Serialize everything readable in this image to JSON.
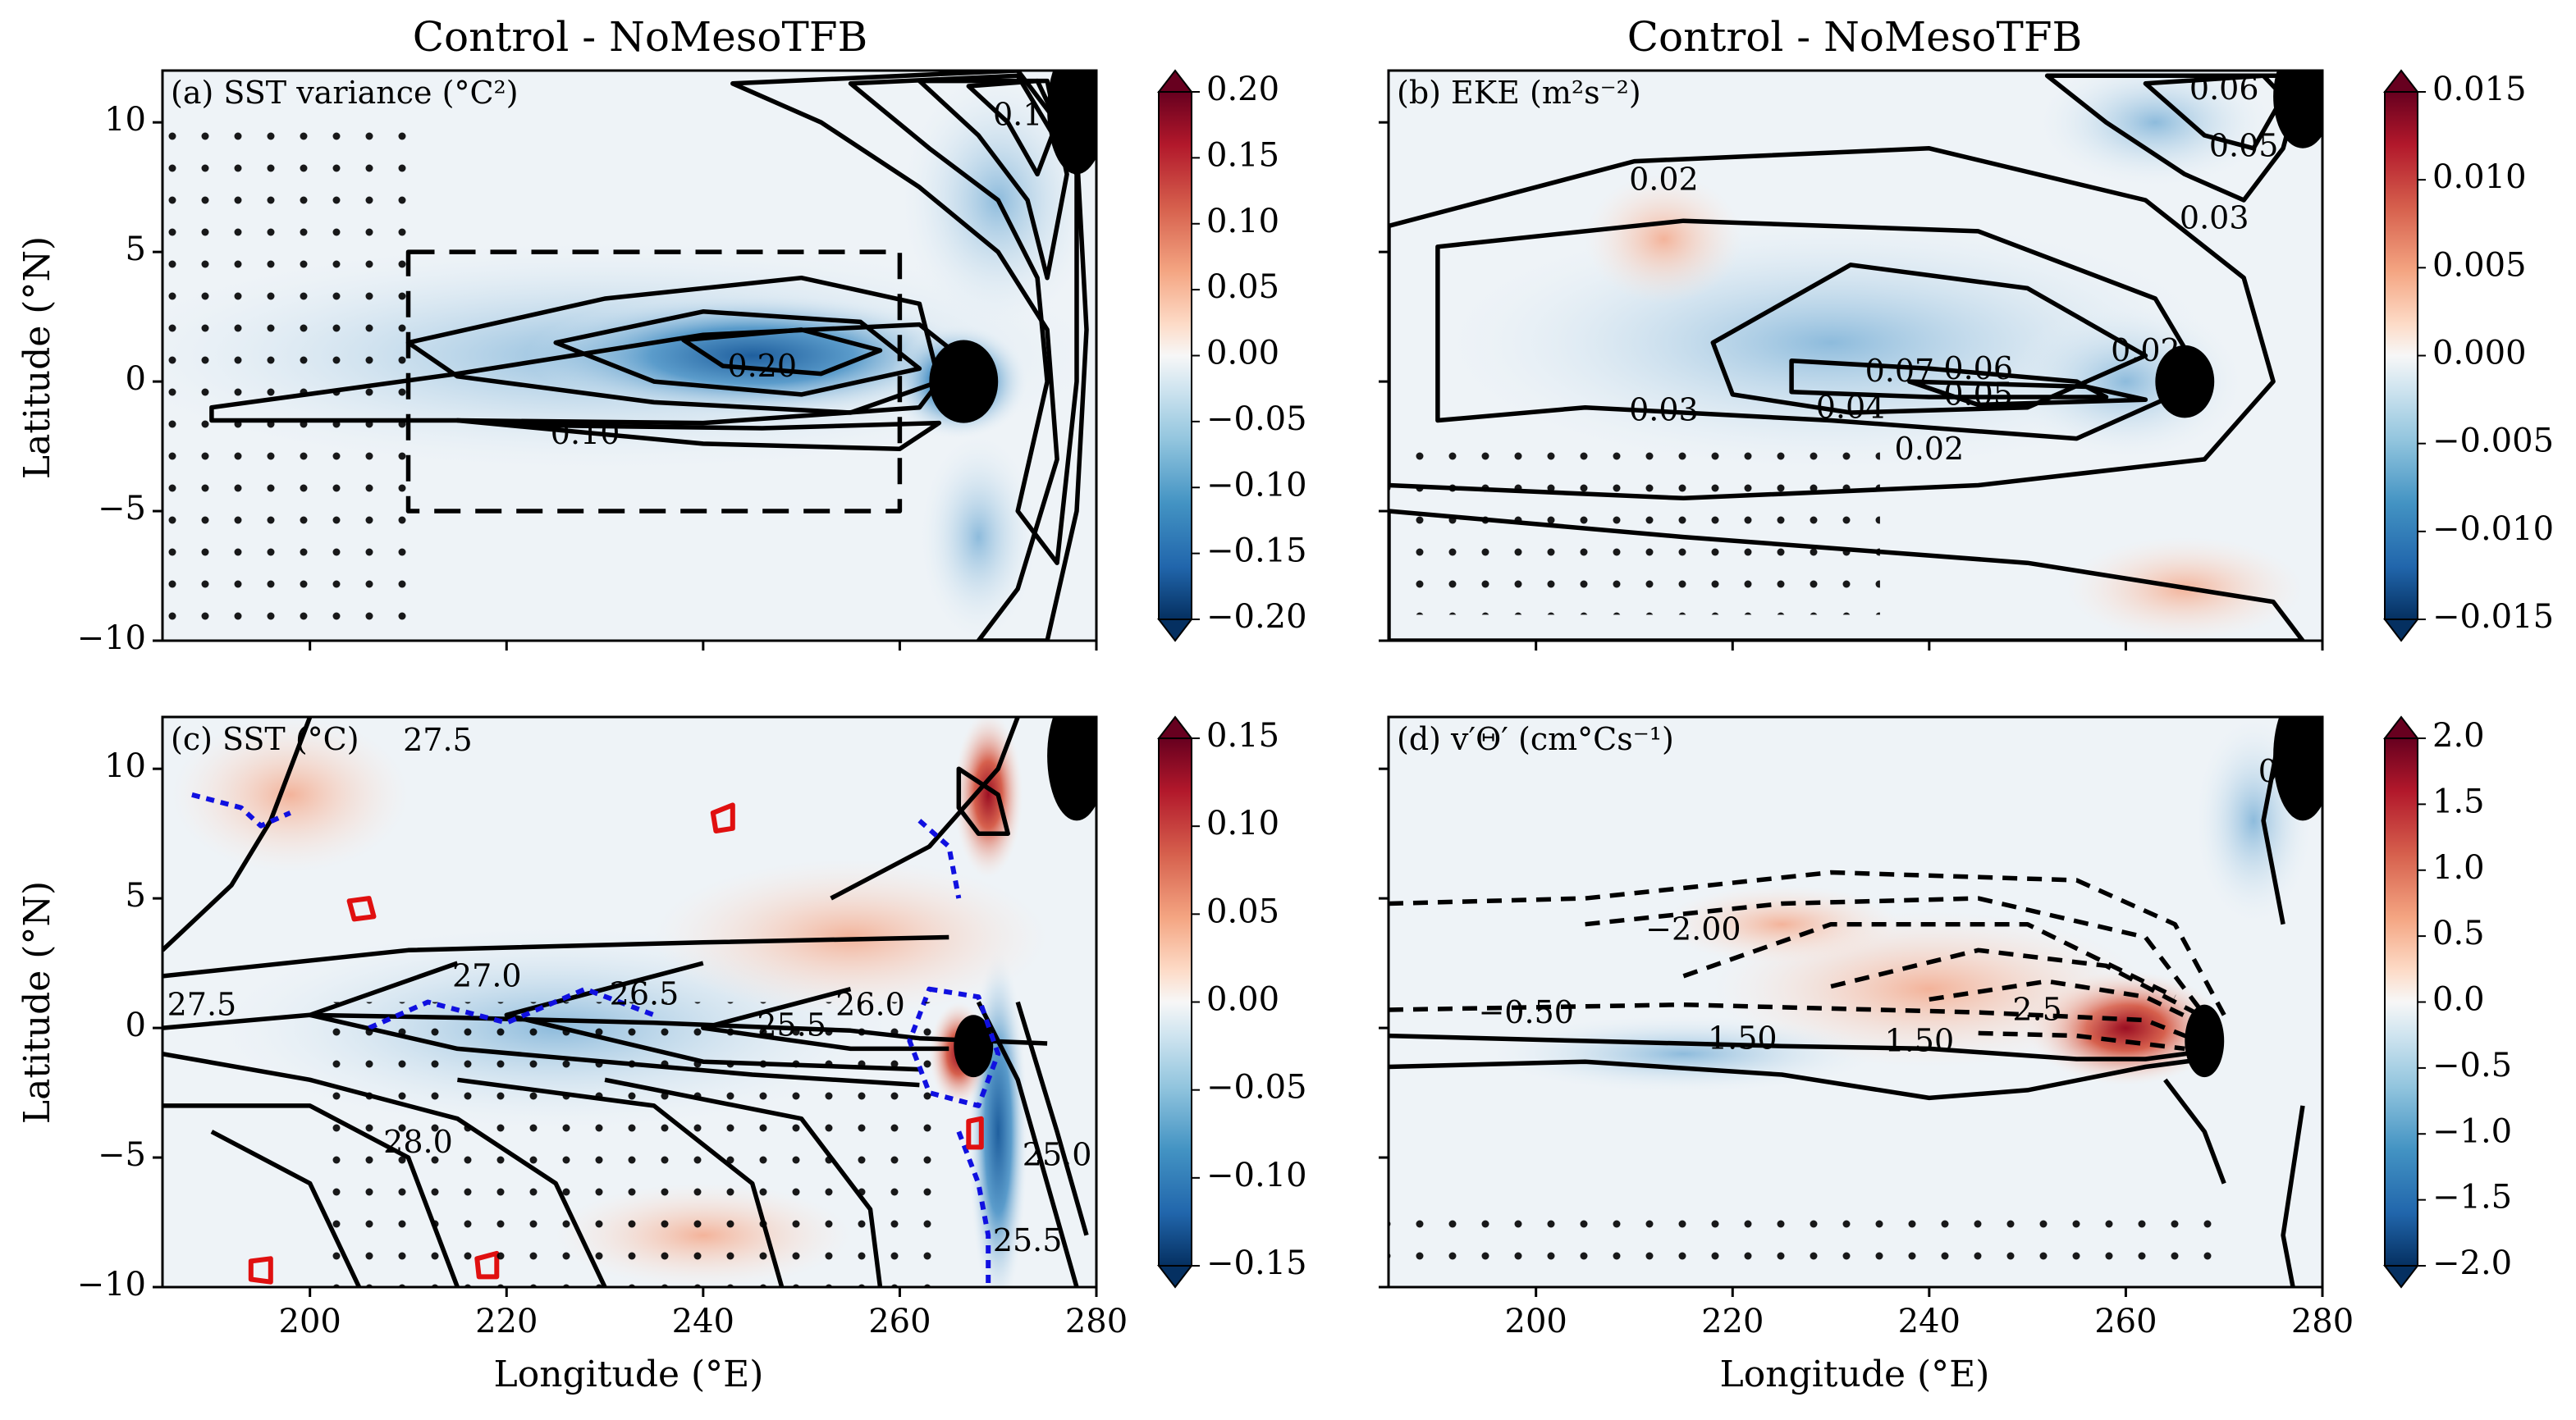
{
  "figure": {
    "column_titles": [
      "Control - NoMesoTFB",
      "Control - NoMesoTFB"
    ],
    "ylabel": "Latitude (°N)",
    "xlabel": "Longitude (°E)"
  },
  "chart_data": [
    {
      "type": "heatmap",
      "panel_label": "(a) SST variance (°C²)",
      "xlim": [
        185,
        280
      ],
      "ylim": [
        -10,
        12
      ],
      "xticks": [
        200,
        220,
        240,
        260,
        280
      ],
      "yticks": [
        -10,
        -5,
        0,
        5,
        10
      ],
      "xtick_labels": [
        "",
        "",
        "",
        "",
        ""
      ],
      "ytick_labels": [
        "−10",
        "−5",
        "0",
        "5",
        "10"
      ],
      "colormap": "RdBu_r",
      "clim": [
        -0.2,
        0.2
      ],
      "colorbar_ticks": [
        "0.20",
        "0.15",
        "0.10",
        "0.05",
        "0.00",
        "−0.05",
        "−0.10",
        "−0.15",
        "−0.20"
      ],
      "contour_labels": [
        {
          "text": "0.10",
          "x": 228,
          "y": -2.1
        },
        {
          "text": "0.20",
          "x": 246,
          "y": 0.5
        },
        {
          "text": "0.1",
          "x": 272,
          "y": 10.2
        }
      ],
      "box": {
        "x": [
          210,
          260
        ],
        "y": [
          -5,
          5
        ],
        "style": "dashed"
      },
      "stippling": true
    },
    {
      "type": "heatmap",
      "panel_label": "(b) EKE (m²s⁻²)",
      "xlim": [
        185,
        280
      ],
      "ylim": [
        -10,
        12
      ],
      "xticks": [
        200,
        220,
        240,
        260,
        280
      ],
      "yticks": [
        -10,
        -5,
        0,
        5,
        10
      ],
      "xtick_labels": [
        "",
        "",
        "",
        "",
        ""
      ],
      "ytick_labels": [
        "",
        "",
        "",
        "",
        ""
      ],
      "colormap": "RdBu_r",
      "clim": [
        -0.015,
        0.015
      ],
      "colorbar_ticks": [
        "0.015",
        "0.010",
        "0.005",
        "0.000",
        "−0.005",
        "−0.010",
        "−0.015"
      ],
      "contour_labels": [
        {
          "text": "0.02",
          "x": 213,
          "y": 7.7
        },
        {
          "text": "0.06",
          "x": 270,
          "y": 11.2
        },
        {
          "text": "0.05",
          "x": 272,
          "y": 9
        },
        {
          "text": "0.03",
          "x": 269,
          "y": 6.2
        },
        {
          "text": "0.07",
          "x": 237,
          "y": 0.3
        },
        {
          "text": "0.06",
          "x": 245,
          "y": 0.4
        },
        {
          "text": "0.05",
          "x": 245,
          "y": -0.6
        },
        {
          "text": "0.02",
          "x": 262,
          "y": 1.1
        },
        {
          "text": "0.03",
          "x": 213,
          "y": -1.2
        },
        {
          "text": "0.04",
          "x": 232,
          "y": -1.1
        },
        {
          "text": "0.02",
          "x": 240,
          "y": -2.7
        }
      ],
      "stippling": true
    },
    {
      "type": "heatmap",
      "panel_label": "(c) SST (°C)",
      "xlim": [
        185,
        280
      ],
      "ylim": [
        -10,
        12
      ],
      "xticks": [
        200,
        220,
        240,
        260,
        280
      ],
      "yticks": [
        -10,
        -5,
        0,
        5,
        10
      ],
      "xtick_labels": [
        "200",
        "220",
        "240",
        "260",
        "280"
      ],
      "ytick_labels": [
        "−10",
        "−5",
        "0",
        "5",
        "10"
      ],
      "colormap": "RdBu_r",
      "clim": [
        -0.15,
        0.15
      ],
      "colorbar_ticks": [
        "0.15",
        "0.10",
        "0.05",
        "0.00",
        "−0.05",
        "−0.10",
        "−0.15"
      ],
      "contour_labels": [
        {
          "text": "27.5",
          "x": 213,
          "y": 11
        },
        {
          "text": "27.5",
          "x": 189,
          "y": 0.8
        },
        {
          "text": "27.0",
          "x": 218,
          "y": 1.9
        },
        {
          "text": "26.5",
          "x": 234,
          "y": 1.2
        },
        {
          "text": "25.5",
          "x": 249,
          "y": 0
        },
        {
          "text": "26.0",
          "x": 257,
          "y": 0.8
        },
        {
          "text": "28.0",
          "x": 211,
          "y": -4.5
        },
        {
          "text": "25.0",
          "x": 276,
          "y": -5
        },
        {
          "text": "25.5",
          "x": 273,
          "y": -8.3
        }
      ],
      "stippling": true
    },
    {
      "type": "heatmap",
      "panel_label": "(d) v′Θ′ (cm°Cs⁻¹)",
      "xlim": [
        185,
        280
      ],
      "ylim": [
        -10,
        12
      ],
      "xticks": [
        200,
        220,
        240,
        260,
        280
      ],
      "yticks": [
        -10,
        -5,
        0,
        5,
        10
      ],
      "xtick_labels": [
        "200",
        "220",
        "240",
        "260",
        "280"
      ],
      "ytick_labels": [
        "",
        "",
        "",
        "",
        ""
      ],
      "colormap": "RdBu_r",
      "clim": [
        -2.0,
        2.0
      ],
      "colorbar_ticks": [
        "2.0",
        "1.5",
        "1.0",
        "0.5",
        "0.0",
        "−0.5",
        "−1.0",
        "−1.5",
        "−2.0"
      ],
      "contour_labels": [
        {
          "text": "0.50",
          "x": 277,
          "y": 9.8
        },
        {
          "text": "−2.00",
          "x": 216,
          "y": 3.7
        },
        {
          "text": "−0.50",
          "x": 199,
          "y": 0.5
        },
        {
          "text": "1.50",
          "x": 221,
          "y": -0.5
        },
        {
          "text": "1.50",
          "x": 239,
          "y": -0.6
        },
        {
          "text": "2.5",
          "x": 251,
          "y": 0.6
        }
      ],
      "stippling": true
    }
  ]
}
